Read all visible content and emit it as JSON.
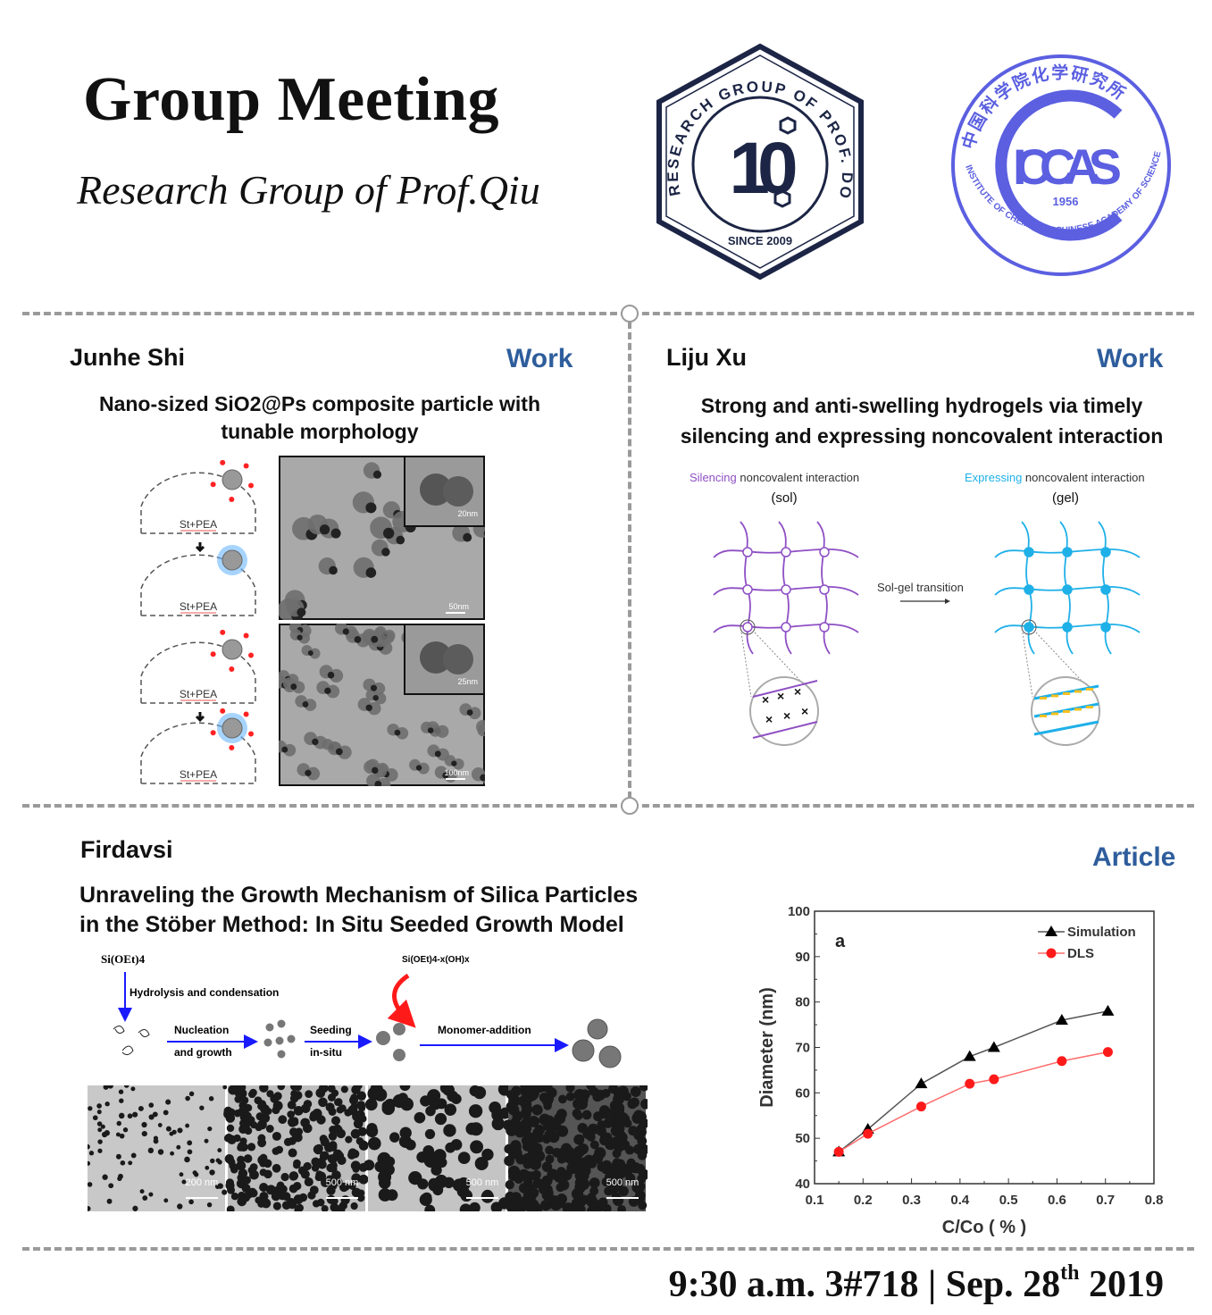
{
  "header": {
    "title": "Group Meeting",
    "subtitle_prefix": "Research Group of ",
    "subtitle_name": "Prof.Qiu"
  },
  "logos": {
    "group_logo": {
      "ring_text": "RESEARCH GROUP OF PROF. DONG QIU",
      "bottom_text": "SINCE 2009",
      "mark": "10",
      "color": "#1c2545"
    },
    "iccas_logo": {
      "top_text": "中国科学院化学研究所",
      "bottom_text": "INSTITUTE OF CHEMISTRY  CHINESE ACADEMY OF SCIENCES",
      "acronym": "ICCAS",
      "year": "1956",
      "color": "#5b5fe0"
    }
  },
  "sections": {
    "junhe": {
      "presenter": "Junhe Shi",
      "type": "Work",
      "title_line1": "Nano-sized SiO2@Ps composite particle with",
      "title_line2": "tunable morphology",
      "scheme_label": "St+PEA",
      "scale_bars": [
        "20nm",
        "50nm",
        "25nm",
        "100nm"
      ]
    },
    "liju": {
      "presenter": "Liju Xu",
      "type": "Work",
      "title_line1": "Strong and anti-swelling hydrogels via timely",
      "title_line2": "silencing and expressing noncovalent interaction",
      "left_keyword": "Silencing",
      "left_rest": " noncovalent interaction",
      "left_state": "(sol)",
      "right_keyword": "Expressing",
      "right_rest": " noncovalent interaction",
      "right_state": "(gel)",
      "transition": "Sol-gel transition",
      "colors": {
        "silencing": "#8e4fc4",
        "expressing": "#1fb0e8"
      }
    },
    "firdavsi": {
      "presenter": "Firdavsi",
      "type": "Article",
      "title_line1": "Unraveling the Growth Mechanism of Silica Particles",
      "title_line2": "in the Stöber Method: In Situ Seeded Growth Model",
      "scheme": {
        "precursor": "Si(OEt)4",
        "hydrolysis": "Hydrolysis and condensation",
        "intermediate": "Si(OEt)4-x(OH)x",
        "nucleation_1": "Nucleation",
        "nucleation_2": "and growth",
        "seeding_1": "Seeding",
        "seeding_2": "in-situ",
        "monomer": "Monomer-addition"
      },
      "tem_scale_bars": [
        "200 nm",
        "500 nm",
        "500 nm",
        "500 nm"
      ]
    }
  },
  "chart_data": {
    "type": "line",
    "panel_label": "a",
    "xlabel": "C/Co ( % )",
    "ylabel": "Diameter (nm)",
    "xlim": [
      0.1,
      0.8
    ],
    "ylim": [
      40,
      100
    ],
    "xticks": [
      "0.1",
      "0.2",
      "0.3",
      "0.4",
      "0.5",
      "0.6",
      "0.7",
      "0.8"
    ],
    "yticks": [
      "40",
      "50",
      "60",
      "70",
      "80",
      "90",
      "100"
    ],
    "grid": false,
    "legend_position": "top-right",
    "x": [
      0.15,
      0.21,
      0.32,
      0.42,
      0.47,
      0.61,
      0.705
    ],
    "series": [
      {
        "name": "Simulation",
        "marker": "triangle",
        "color": "#000000",
        "line_color": "#555555",
        "values": [
          47,
          52,
          62,
          68,
          70,
          76,
          78
        ]
      },
      {
        "name": "DLS",
        "marker": "circle",
        "color": "#ff1a1a",
        "line_color": "#ff6b6b",
        "values": [
          47,
          51,
          57,
          62,
          63,
          67,
          69
        ]
      }
    ]
  },
  "footer": {
    "time_place": "9:30 a.m. 3#718 | Sep. 28",
    "ordinal": "th",
    "year": " 2019"
  }
}
